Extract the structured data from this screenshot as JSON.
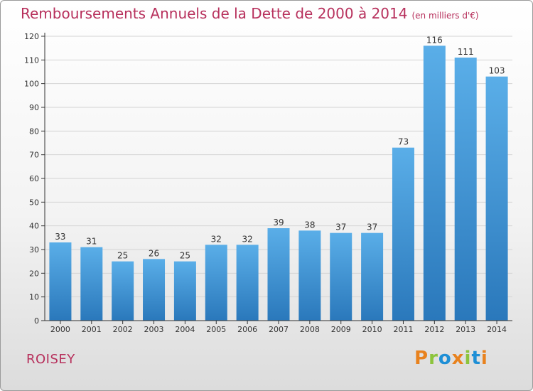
{
  "header": {
    "title": "Remboursements Annuels de la Dette de 2000 à 2014",
    "unit": "(en milliers d'€)"
  },
  "footer": {
    "place": "ROISEY",
    "brand": "Proxiti"
  },
  "colors": {
    "title": "#b7305c",
    "bar_top": "#5aaee8",
    "bar_bottom": "#2a78bb",
    "logo": [
      "#e8821e",
      "#8cc43c",
      "#1e8fd6",
      "#e8821e",
      "#8cc43c",
      "#1e8fd6",
      "#e8821e"
    ]
  },
  "chart_data": {
    "type": "bar",
    "title": "Remboursements Annuels de la Dette de 2000 à 2014",
    "categories": [
      "2000",
      "2001",
      "2002",
      "2003",
      "2004",
      "2005",
      "2006",
      "2007",
      "2008",
      "2009",
      "2010",
      "2011",
      "2012",
      "2013",
      "2014"
    ],
    "values": [
      33,
      31,
      25,
      26,
      25,
      32,
      32,
      39,
      38,
      37,
      37,
      73,
      116,
      111,
      103
    ],
    "ylim": [
      0,
      120
    ],
    "ytick_step": 10,
    "grid": true,
    "legend": "none",
    "data_labels": true
  }
}
